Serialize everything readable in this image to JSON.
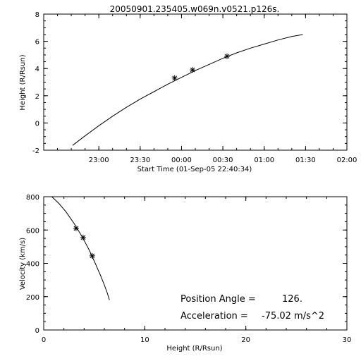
{
  "chart_data": [
    {
      "type": "line",
      "title": "20050901.235405.w069n.v0521.p126s.",
      "xlabel": "Start Time (01-Sep-05 22:40:34)",
      "ylabel": "Height (R/Rsun)",
      "xlim_minutes": [
        -100,
        20
      ],
      "ylim": [
        -2,
        8
      ],
      "xticks": [
        {
          "value": -60,
          "label": "23:00"
        },
        {
          "value": -30,
          "label": "23:30"
        },
        {
          "value": 0,
          "label": "00:00"
        },
        {
          "value": 30,
          "label": "00:30"
        },
        {
          "value": 60,
          "label": "01:00"
        },
        {
          "value": 90,
          "label": "01:30"
        },
        {
          "value": 120,
          "label": "02:00"
        }
      ],
      "yticks": [
        -2,
        0,
        2,
        4,
        6,
        8
      ],
      "fit_curve": {
        "x_minutes": [
          -79,
          -70,
          -60,
          -50,
          -40,
          -30,
          -20,
          -10,
          0,
          10,
          20,
          30,
          40,
          50,
          60,
          70,
          80,
          88
        ],
        "y": [
          -1.65,
          -0.95,
          -0.2,
          0.5,
          1.15,
          1.75,
          2.3,
          2.85,
          3.35,
          3.85,
          4.3,
          4.75,
          5.15,
          5.5,
          5.8,
          6.1,
          6.35,
          6.5
        ]
      },
      "points": {
        "x_minutes": [
          -5,
          8,
          33
        ],
        "y": [
          3.3,
          3.9,
          4.9
        ]
      }
    },
    {
      "type": "line",
      "xlabel": "Height (R/Rsun)",
      "ylabel": "Velocity (km/s)",
      "xlim": [
        0,
        30
      ],
      "ylim": [
        0,
        800
      ],
      "xticks": [
        0,
        10,
        20,
        30
      ],
      "yticks": [
        0,
        200,
        400,
        600,
        800
      ],
      "fit_curve": {
        "x": [
          0.8,
          1.5,
          2.2,
          3.0,
          3.8,
          4.5,
          5.1,
          5.6,
          6.0,
          6.3,
          6.5
        ],
        "y": [
          800,
          760,
          710,
          640,
          560,
          480,
          400,
          330,
          270,
          220,
          180
        ]
      },
      "points": {
        "x": [
          3.2,
          3.9,
          4.8
        ],
        "y": [
          610,
          555,
          445
        ]
      },
      "annotations": [
        {
          "label": "Position Angle =",
          "value": "126."
        },
        {
          "label": "Acceleration =",
          "value": "-75.02 m/s^2"
        }
      ]
    }
  ]
}
